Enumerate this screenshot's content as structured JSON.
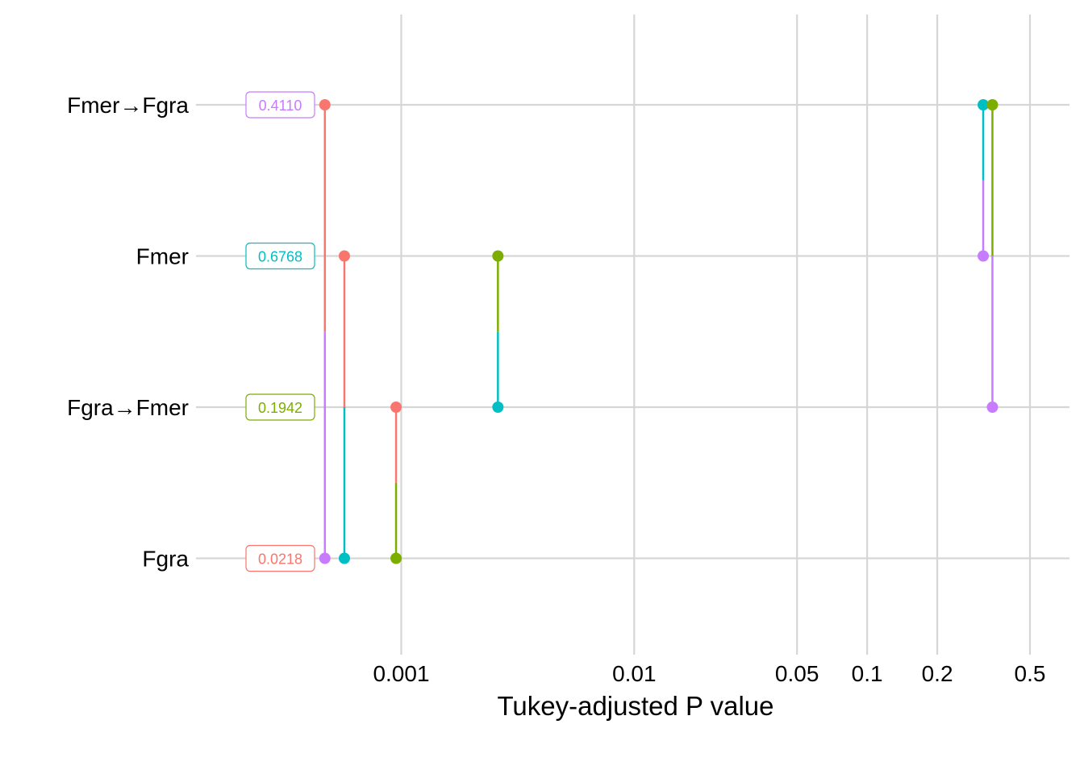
{
  "chart_data": {
    "type": "scatter",
    "title": "",
    "xlabel": "Tukey-adjusted P value",
    "ylabel": "",
    "x_scale": "log",
    "xlim": [
      0.0002,
      0.7
    ],
    "x_ticks": [
      {
        "value": 0.001,
        "label": "0.001"
      },
      {
        "value": 0.01,
        "label": "0.01"
      },
      {
        "value": 0.05,
        "label": "0.05"
      },
      {
        "value": 0.1,
        "label": "0.1"
      },
      {
        "value": 0.2,
        "label": "0.2"
      },
      {
        "value": 0.5,
        "label": "0.5"
      }
    ],
    "categories": [
      "Fmer→Fgra",
      "Fmer",
      "Fgra→Fmer",
      "Fgra"
    ],
    "grid": true,
    "legend": "none",
    "category_boxes": [
      {
        "category": "Fmer→Fgra",
        "text": "0.4110",
        "color": "#C77CFF"
      },
      {
        "category": "Fmer",
        "text": "0.6768",
        "color": "#00BFC4"
      },
      {
        "category": "Fgra→Fmer",
        "text": "0.1942",
        "color": "#7CAE00"
      },
      {
        "category": "Fgra",
        "text": "0.0218",
        "color": "#F8766D"
      }
    ],
    "comparisons": [
      {
        "from": "Fgra",
        "to": "Fmer→Fgra",
        "x": 0.00047
      },
      {
        "from": "Fgra",
        "to": "Fmer",
        "x": 0.00057
      },
      {
        "from": "Fgra",
        "to": "Fgra→Fmer",
        "x": 0.00095
      },
      {
        "from": "Fgra→Fmer",
        "to": "Fmer",
        "x": 0.0026
      },
      {
        "from": "Fmer",
        "to": "Fmer→Fgra",
        "x": 0.315
      },
      {
        "from": "Fgra→Fmer",
        "to": "Fmer→Fgra",
        "x": 0.345
      }
    ]
  }
}
